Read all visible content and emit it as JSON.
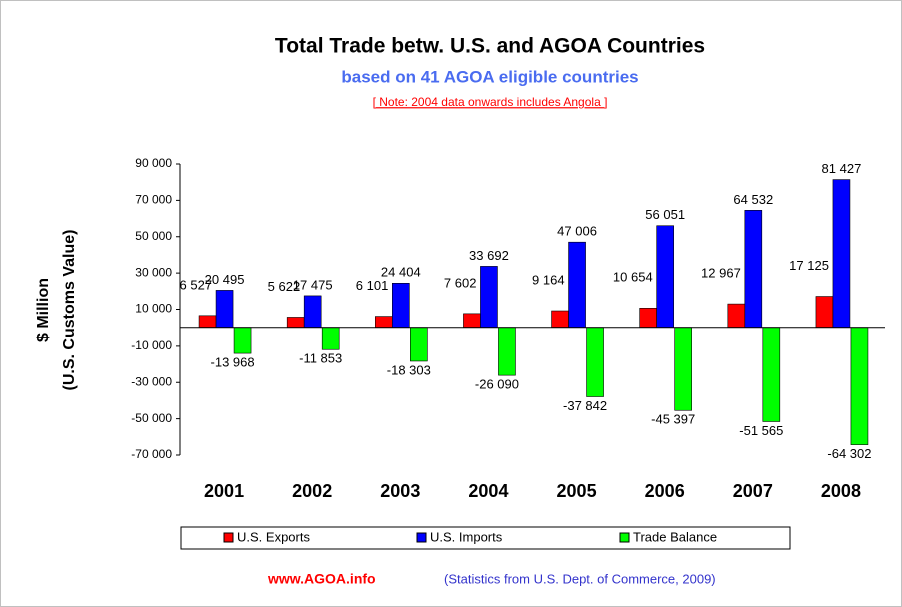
{
  "chart_data": {
    "type": "bar",
    "title": "Total Trade betw. U.S. and AGOA Countries",
    "subtitle": "based on 41 AGOA eligible countries",
    "note": "[ Note: 2004 data onwards includes Angola ]",
    "y_label": [
      "$ Million",
      "(U.S. Customs Value)"
    ],
    "categories": [
      "2001",
      "2002",
      "2003",
      "2004",
      "2005",
      "2006",
      "2007",
      "2008"
    ],
    "series": [
      {
        "name": "U.S. Exports",
        "color": "#ff0000",
        "values": [
          6527,
          5622,
          6101,
          7602,
          9164,
          10654,
          12967,
          17125
        ],
        "value_labels": [
          "6 527",
          "5 622",
          "6 101",
          "7 602",
          "9 164",
          "10 654",
          "12 967",
          "17 125"
        ]
      },
      {
        "name": "U.S. Imports",
        "color": "#0000ff",
        "values": [
          20495,
          17475,
          24404,
          33692,
          47006,
          56051,
          64532,
          81427
        ],
        "value_labels": [
          "20 495",
          "17 475",
          "24 404",
          "33 692",
          "47 006",
          "56 051",
          "64 532",
          "81 427"
        ]
      },
      {
        "name": "Trade Balance",
        "color": "#00ff00",
        "values": [
          -13968,
          -11853,
          -18303,
          -26090,
          -37842,
          -45397,
          -51565,
          -64302
        ],
        "value_labels": [
          "-13 968",
          "-11 853",
          "-18 303",
          "-26 090",
          "-37 842",
          "-45 397",
          "-51 565",
          "-64 302"
        ]
      }
    ],
    "ylim": [
      -70000,
      90000
    ],
    "yticks": [
      {
        "value": 90000,
        "label": "90 000"
      },
      {
        "value": 70000,
        "label": "70 000"
      },
      {
        "value": 50000,
        "label": "50 000"
      },
      {
        "value": 30000,
        "label": "30 000"
      },
      {
        "value": 10000,
        "label": "10 000"
      },
      {
        "value": -10000,
        "label": "-10 000"
      },
      {
        "value": -30000,
        "label": "-30 000"
      },
      {
        "value": -50000,
        "label": "-50 000"
      },
      {
        "value": -70000,
        "label": "-70 000"
      }
    ],
    "footer_left": "www.AGOA.info",
    "footer_right": "(Statistics from U.S. Dept. of Commerce, 2009)"
  }
}
